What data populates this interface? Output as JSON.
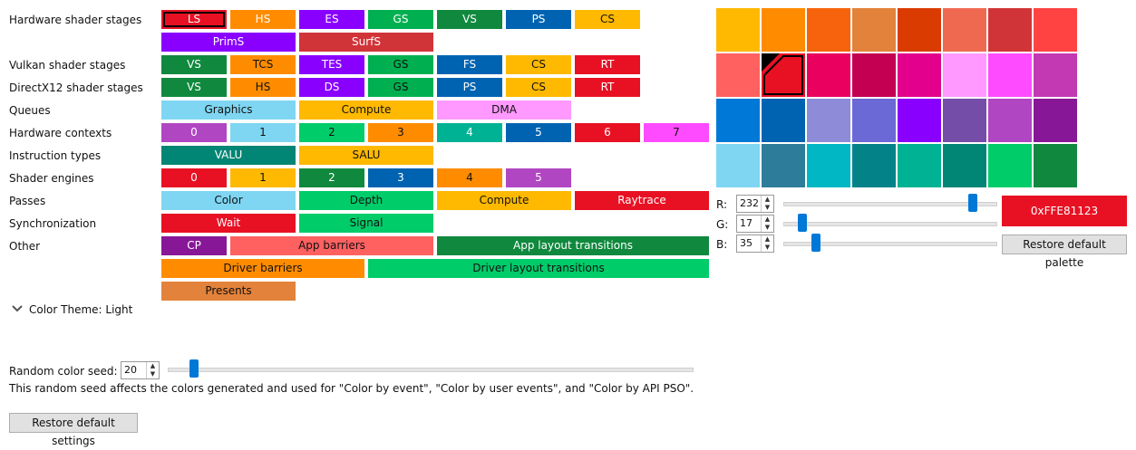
{
  "rows": [
    {
      "label": "Hardware shader stages",
      "items": [
        {
          "text": "LS",
          "color": "#e81123",
          "selected": true
        },
        {
          "text": "HS",
          "color": "#ff8c00"
        },
        {
          "text": "ES",
          "color": "#8a00ff"
        },
        {
          "text": "GS",
          "color": "#00b050"
        },
        {
          "text": "VS",
          "color": "#10893e"
        },
        {
          "text": "PS",
          "color": "#0063b1"
        },
        {
          "text": "CS",
          "color": "#ffb900",
          "dark": true
        },
        {
          "text": "PrimS",
          "color": "#8a00ff"
        },
        {
          "text": "SurfS",
          "color": "#d13438"
        }
      ]
    },
    {
      "label": "Vulkan shader stages",
      "items": [
        {
          "text": "VS",
          "color": "#10893e"
        },
        {
          "text": "TCS",
          "color": "#ff8c00",
          "dark": true
        },
        {
          "text": "TES",
          "color": "#8a00ff"
        },
        {
          "text": "GS",
          "color": "#00b050",
          "dark": true
        },
        {
          "text": "FS",
          "color": "#0063b1"
        },
        {
          "text": "CS",
          "color": "#ffb900",
          "dark": true
        },
        {
          "text": "RT",
          "color": "#e81123"
        }
      ]
    },
    {
      "label": "DirectX12 shader stages",
      "items": [
        {
          "text": "VS",
          "color": "#10893e"
        },
        {
          "text": "HS",
          "color": "#ff8c00",
          "dark": true
        },
        {
          "text": "DS",
          "color": "#8a00ff"
        },
        {
          "text": "GS",
          "color": "#00b050",
          "dark": true
        },
        {
          "text": "PS",
          "color": "#0063b1"
        },
        {
          "text": "CS",
          "color": "#ffb900",
          "dark": true
        },
        {
          "text": "RT",
          "color": "#e81123"
        }
      ]
    },
    {
      "label": "Queues",
      "items": [
        {
          "text": "Graphics",
          "color": "#7fd6f2",
          "dark": true
        },
        {
          "text": "Compute",
          "color": "#ffb900",
          "dark": true
        },
        {
          "text": "DMA",
          "color": "#ff99ff",
          "dark": true
        }
      ]
    },
    {
      "label": "Hardware contexts",
      "items": [
        {
          "text": "0",
          "color": "#b146c2"
        },
        {
          "text": "1",
          "color": "#7fd6f2",
          "dark": true
        },
        {
          "text": "2",
          "color": "#00cc6a",
          "dark": true
        },
        {
          "text": "3",
          "color": "#ff8c00",
          "dark": true
        },
        {
          "text": "4",
          "color": "#00b294"
        },
        {
          "text": "5",
          "color": "#0063b1"
        },
        {
          "text": "6",
          "color": "#e81123"
        },
        {
          "text": "7",
          "color": "#ff4bff",
          "dark": true
        }
      ]
    },
    {
      "label": "Instruction types",
      "items": [
        {
          "text": "VALU",
          "color": "#018574"
        },
        {
          "text": "SALU",
          "color": "#ffb900",
          "dark": true
        }
      ]
    },
    {
      "label": "Shader engines",
      "items": [
        {
          "text": "0",
          "color": "#e81123"
        },
        {
          "text": "1",
          "color": "#ffb900",
          "dark": true
        },
        {
          "text": "2",
          "color": "#10893e"
        },
        {
          "text": "3",
          "color": "#0063b1"
        },
        {
          "text": "4",
          "color": "#ff8c00",
          "dark": true
        },
        {
          "text": "5",
          "color": "#b146c2"
        }
      ]
    },
    {
      "label": "Passes",
      "items": [
        {
          "text": "Color",
          "color": "#7fd6f2",
          "dark": true
        },
        {
          "text": "Depth",
          "color": "#00cc6a",
          "dark": true
        },
        {
          "text": "Compute",
          "color": "#ffb900",
          "dark": true
        },
        {
          "text": "Raytrace",
          "color": "#e81123"
        }
      ]
    },
    {
      "label": "Synchronization",
      "items": [
        {
          "text": "Wait",
          "color": "#e81123"
        },
        {
          "text": "Signal",
          "color": "#00cc6a",
          "dark": true
        }
      ]
    },
    {
      "label": "Other",
      "items": [
        {
          "text": "CP",
          "color": "#881798"
        },
        {
          "text": "App barriers",
          "color": "#ff6060",
          "dark": true
        },
        {
          "text": "App layout transitions",
          "color": "#10893e"
        },
        {
          "text": "Driver barriers",
          "color": "#ff8c00",
          "dark": true
        },
        {
          "text": "Driver layout transitions",
          "color": "#00cc6a",
          "dark": true
        },
        {
          "text": "Presents",
          "color": "#e3823b",
          "dark": true
        }
      ]
    }
  ],
  "color_theme": {
    "label": "Color Theme: Light",
    "icon": "chevron-down-icon"
  },
  "seed": {
    "label": "Random color seed:",
    "value": "20",
    "description": "This random seed affects the colors generated and used for \"Color by event\", \"Color by user events\", and \"Color by API PSO\"."
  },
  "restore_settings_label": "Restore default settings",
  "palette": [
    "#ffb900",
    "#ff8c00",
    "#f7630c",
    "#e3823b",
    "#da3b01",
    "#ef6950",
    "#d13438",
    "#ff4343",
    "#ff6060",
    "#e81123",
    "#ea005e",
    "#c30052",
    "#e3008c",
    "#ff99ff",
    "#ff4bff",
    "#c239b3",
    "#0078d7",
    "#0063b1",
    "#8e8cd8",
    "#6b69d6",
    "#8a00ff",
    "#744da9",
    "#b146c2",
    "#881798",
    "#7fd6f2",
    "#2d7d9a",
    "#00b7c3",
    "#038387",
    "#00b294",
    "#018574",
    "#00cc6a",
    "#10893e"
  ],
  "selected_swatch": 9,
  "rgb": {
    "r_label": "R:",
    "g_label": "G:",
    "b_label": "B:",
    "r": "232",
    "g": "17",
    "b": "35",
    "r_level": 0.91,
    "g_level": 0.07,
    "b_level": 0.14,
    "hex": "0xFFE81123",
    "hex_color": "#e81123",
    "restore_palette_label": "Restore default palette"
  }
}
